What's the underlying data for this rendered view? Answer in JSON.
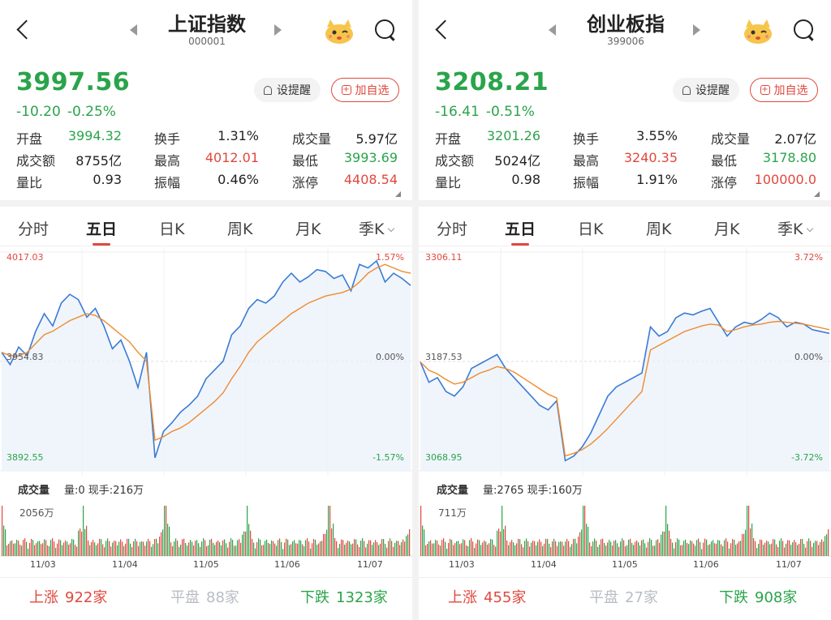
{
  "panels": [
    {
      "title": "上证指数",
      "code": "000001",
      "price": "3997.56",
      "change": "-10.20",
      "change_pct": "-0.25%",
      "alert_label": "设提醒",
      "add_label": "加自选",
      "stats": [
        [
          {
            "label": "开盘",
            "value": "3994.32",
            "color": "g"
          },
          {
            "label": "换手",
            "value": "1.31%",
            "color": "k"
          },
          {
            "label": "成交量",
            "value": "5.97亿",
            "color": "k"
          }
        ],
        [
          {
            "label": "成交额",
            "value": "8755亿",
            "color": "k"
          },
          {
            "label": "最高",
            "value": "4012.01",
            "color": "r"
          },
          {
            "label": "最低",
            "value": "3993.69",
            "color": "g"
          }
        ],
        [
          {
            "label": "量比",
            "value": "0.93",
            "color": "k"
          },
          {
            "label": "振幅",
            "value": "0.46%",
            "color": "k"
          },
          {
            "label": "涨停",
            "value": "4408.54",
            "color": "r"
          }
        ]
      ],
      "tabs": [
        "分时",
        "五日",
        "日K",
        "周K",
        "月K",
        "季K"
      ],
      "active_tab": 1,
      "axis": {
        "top": "4017.03",
        "mid": "3954.83",
        "bottom": "3892.55",
        "top_pct": "1.57%",
        "mid_pct": "0.00%",
        "bottom_pct": "-1.57%"
      },
      "volume": {
        "label": "成交量",
        "detail": "量:0 现手:216万",
        "max": "2056万"
      },
      "dates": [
        "11/03",
        "11/04",
        "11/05",
        "11/06",
        "11/07"
      ],
      "footer": {
        "up_label": "上涨",
        "up_count": "922家",
        "flat_label": "平盘",
        "flat_count": "88家",
        "down_label": "下跌",
        "down_count": "1323家"
      },
      "chart_data": {
        "type": "line",
        "ylim": [
          3892.55,
          4017.03
        ],
        "series": [
          {
            "values": [
              3960,
              3953,
              3963,
              3958,
              3972,
              3982,
              3975,
              3988,
              3993,
              3990,
              3980,
              3985,
              3975,
              3962,
              3967,
              3955,
              3940,
              3960,
              3900,
              3915,
              3920,
              3926,
              3930,
              3935,
              3945,
              3950,
              3955,
              3970,
              3975,
              3985,
              3990,
              3988,
              3992,
              4000,
              4005,
              4000,
              4003,
              4007,
              4006,
              4002,
              4004,
              3995,
              4010,
              4008,
              4012,
              4000,
              4005,
              4002,
              3998
            ]
          },
          {
            "values": [
              3960,
              3958,
              3958,
              3960,
              3965,
              3970,
              3972,
              3975,
              3978,
              3980,
              3982,
              3981,
              3978,
              3974,
              3970,
              3966,
              3960,
              3955,
              3910,
              3912,
              3915,
              3917,
              3920,
              3924,
              3928,
              3932,
              3937,
              3945,
              3952,
              3960,
              3966,
              3970,
              3974,
              3978,
              3982,
              3985,
              3988,
              3990,
              3992,
              3993,
              3994,
              3996,
              4000,
              4005,
              4008,
              4010,
              4008,
              4006,
              4005
            ]
          }
        ]
      }
    },
    {
      "title": "创业板指",
      "code": "399006",
      "price": "3208.21",
      "change": "-16.41",
      "change_pct": "-0.51%",
      "alert_label": "设提醒",
      "add_label": "加自选",
      "stats": [
        [
          {
            "label": "开盘",
            "value": "3201.26",
            "color": "g"
          },
          {
            "label": "换手",
            "value": "3.55%",
            "color": "k"
          },
          {
            "label": "成交量",
            "value": "2.07亿",
            "color": "k"
          }
        ],
        [
          {
            "label": "成交额",
            "value": "5024亿",
            "color": "k"
          },
          {
            "label": "最高",
            "value": "3240.35",
            "color": "r"
          },
          {
            "label": "最低",
            "value": "3178.80",
            "color": "g"
          }
        ],
        [
          {
            "label": "量比",
            "value": "0.98",
            "color": "k"
          },
          {
            "label": "振幅",
            "value": "1.91%",
            "color": "k"
          },
          {
            "label": "涨停",
            "value": "100000.0",
            "color": "r"
          }
        ]
      ],
      "tabs": [
        "分时",
        "五日",
        "日K",
        "周K",
        "月K",
        "季K"
      ],
      "active_tab": 1,
      "axis": {
        "top": "3306.11",
        "mid": "3187.53",
        "bottom": "3068.95",
        "top_pct": "3.72%",
        "mid_pct": "0.00%",
        "bottom_pct": "-3.72%"
      },
      "volume": {
        "label": "成交量",
        "detail": "量:2765 现手:160万",
        "max": "711万"
      },
      "dates": [
        "11/03",
        "11/04",
        "11/05",
        "11/06",
        "11/07"
      ],
      "footer": {
        "up_label": "上涨",
        "up_count": "455家",
        "flat_label": "平盘",
        "flat_count": "27家",
        "down_label": "下跌",
        "down_count": "908家"
      },
      "chart_data": {
        "type": "line",
        "ylim": [
          3068.95,
          3306.11
        ],
        "series": [
          {
            "values": [
              3187,
              3165,
              3170,
              3155,
              3150,
              3160,
              3180,
              3185,
              3190,
              3195,
              3180,
              3170,
              3160,
              3150,
              3140,
              3135,
              3145,
              3080,
              3085,
              3095,
              3110,
              3130,
              3150,
              3160,
              3165,
              3170,
              3175,
              3225,
              3215,
              3220,
              3235,
              3240,
              3238,
              3242,
              3245,
              3230,
              3215,
              3225,
              3230,
              3228,
              3233,
              3240,
              3235,
              3225,
              3230,
              3228,
              3222,
              3220,
              3218
            ]
          },
          {
            "values": [
              3187,
              3178,
              3174,
              3168,
              3163,
              3165,
              3170,
              3175,
              3178,
              3182,
              3180,
              3176,
              3170,
              3164,
              3158,
              3152,
              3148,
              3085,
              3088,
              3092,
              3098,
              3106,
              3115,
              3125,
              3135,
              3145,
              3155,
              3200,
              3205,
              3210,
              3215,
              3220,
              3223,
              3226,
              3228,
              3227,
              3220,
              3222,
              3225,
              3227,
              3228,
              3230,
              3231,
              3230,
              3229,
              3228,
              3226,
              3224,
              3222
            ]
          }
        ]
      }
    }
  ]
}
